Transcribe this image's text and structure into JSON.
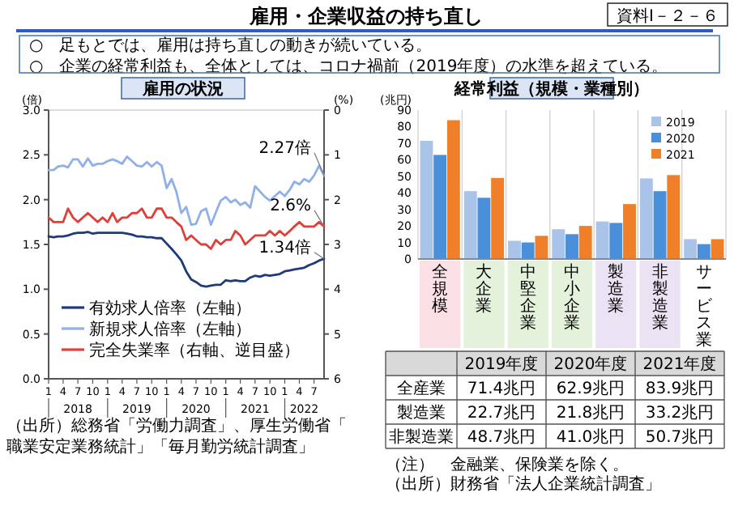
{
  "chart_data": [
    {
      "type": "other",
      "title": "雇用・企業収益の持ち直し",
      "annotations": [
        "資料Ⅰ－２－６",
        "○　足もとでは、雇用は持ち直しの動きが続いている。",
        "○　企業の経常利益も、全体としては、コロナ禍前（2019年度）の水準を超えている。"
      ]
    },
    {
      "type": "line",
      "title": "雇用の状況",
      "ylabel": "(倍)",
      "y2label": "(%)",
      "x": [
        "2018-01",
        "2018-02",
        "2018-03",
        "2018-04",
        "2018-05",
        "2018-06",
        "2018-07",
        "2018-08",
        "2018-09",
        "2018-10",
        "2018-11",
        "2018-12",
        "2019-01",
        "2019-02",
        "2019-03",
        "2019-04",
        "2019-05",
        "2019-06",
        "2019-07",
        "2019-08",
        "2019-09",
        "2019-10",
        "2019-11",
        "2019-12",
        "2020-01",
        "2020-02",
        "2020-03",
        "2020-04",
        "2020-05",
        "2020-06",
        "2020-07",
        "2020-08",
        "2020-09",
        "2020-10",
        "2020-11",
        "2020-12",
        "2021-01",
        "2021-02",
        "2021-03",
        "2021-04",
        "2021-05",
        "2021-06",
        "2021-07",
        "2021-08",
        "2021-09",
        "2021-10",
        "2021-11",
        "2021-12",
        "2022-01",
        "2022-02",
        "2022-03",
        "2022-04",
        "2022-05",
        "2022-06",
        "2022-07",
        "2022-08",
        "2022-09"
      ],
      "xlim": [
        "2018-01",
        "2022-09"
      ],
      "xticks": [
        {
          "value": "2018-01",
          "label": "1"
        },
        {
          "value": "2018-04",
          "label": "4"
        },
        {
          "value": "2018-07",
          "label": "7"
        },
        {
          "value": "2018-10",
          "label": "10"
        },
        {
          "value": "2019-01",
          "label": "1"
        },
        {
          "value": "2019-04",
          "label": "4"
        },
        {
          "value": "2019-07",
          "label": "7"
        },
        {
          "value": "2019-10",
          "label": "10"
        },
        {
          "value": "2020-01",
          "label": "1"
        },
        {
          "value": "2020-04",
          "label": "4"
        },
        {
          "value": "2020-07",
          "label": "7"
        },
        {
          "value": "2020-10",
          "label": "10"
        },
        {
          "value": "2021-01",
          "label": "1"
        },
        {
          "value": "2021-04",
          "label": "4"
        },
        {
          "value": "2021-07",
          "label": "7"
        },
        {
          "value": "2021-10",
          "label": "10"
        },
        {
          "value": "2022-01",
          "label": "1"
        },
        {
          "value": "2022-04",
          "label": "4"
        },
        {
          "value": "2022-07",
          "label": "7"
        }
      ],
      "ylim": [
        0,
        3
      ],
      "yticks": [
        {
          "value": 0,
          "label": "0.0"
        },
        {
          "value": 0.5,
          "label": "0.5"
        },
        {
          "value": 1,
          "label": "1.0"
        },
        {
          "value": 1.5,
          "label": "1.5"
        },
        {
          "value": 2,
          "label": "2.0"
        },
        {
          "value": 2.5,
          "label": "2.5"
        },
        {
          "value": 3,
          "label": "3.0"
        }
      ],
      "x2lim": [
        "2018-01",
        "2022-09"
      ],
      "x2ticks": [
        {
          "value": "2018-07",
          "label": "2018"
        },
        {
          "value": "2019-07",
          "label": "2019"
        },
        {
          "value": "2020-07",
          "label": "2020"
        },
        {
          "value": "2021-07",
          "label": "2021"
        },
        {
          "value": "2022-05",
          "label": "2022"
        }
      ],
      "y2lim": [
        6,
        0
      ],
      "y2ticks": [
        0,
        1,
        2,
        3,
        4,
        5,
        6
      ],
      "legend": "bottom left",
      "series": [
        {
          "name": "有効求人倍率（左軸）",
          "color": "#1f3a7a",
          "values": [
            1.59,
            1.58,
            1.59,
            1.59,
            1.6,
            1.62,
            1.63,
            1.63,
            1.64,
            1.62,
            1.63,
            1.63,
            1.63,
            1.63,
            1.63,
            1.63,
            1.62,
            1.61,
            1.59,
            1.59,
            1.58,
            1.58,
            1.57,
            1.57,
            1.51,
            1.45,
            1.39,
            1.32,
            1.2,
            1.11,
            1.08,
            1.04,
            1.03,
            1.04,
            1.05,
            1.05,
            1.1,
            1.09,
            1.1,
            1.09,
            1.09,
            1.13,
            1.15,
            1.14,
            1.16,
            1.15,
            1.16,
            1.17,
            1.2,
            1.21,
            1.22,
            1.23,
            1.24,
            1.27,
            1.29,
            1.32,
            1.34
          ]
        },
        {
          "name": "新規求人倍率（左軸）",
          "color": "#8fb0e8",
          "values": [
            2.33,
            2.33,
            2.37,
            2.38,
            2.36,
            2.45,
            2.45,
            2.37,
            2.46,
            2.38,
            2.4,
            2.4,
            2.43,
            2.45,
            2.43,
            2.4,
            2.48,
            2.43,
            2.38,
            2.37,
            2.42,
            2.37,
            2.42,
            2.38,
            2.13,
            2.23,
            2.09,
            1.85,
            1.92,
            1.72,
            1.73,
            1.87,
            1.9,
            1.72,
            1.86,
            1.99,
            2.03,
            1.97,
            2.0,
            1.94,
            1.97,
            1.91,
            2.15,
            2.09,
            2.03,
            1.99,
            2.04,
            2.09,
            2.04,
            2.11,
            2.2,
            2.17,
            2.23,
            2.2,
            2.27,
            2.38,
            2.27
          ]
        },
        {
          "name": "完全失業率（右軸、逆目盛）",
          "color": "#e0403a",
          "axis": "y2",
          "values": [
            2.4,
            2.5,
            2.5,
            2.5,
            2.2,
            2.4,
            2.5,
            2.4,
            2.3,
            2.4,
            2.5,
            2.4,
            2.5,
            2.3,
            2.5,
            2.4,
            2.4,
            2.3,
            2.3,
            2.2,
            2.4,
            2.4,
            2.2,
            2.2,
            2.4,
            2.4,
            2.5,
            2.6,
            2.9,
            2.8,
            2.9,
            3.0,
            3.0,
            3.1,
            2.9,
            3.0,
            2.9,
            2.9,
            2.7,
            2.8,
            3.0,
            2.9,
            2.8,
            2.8,
            2.8,
            2.7,
            2.8,
            2.7,
            2.8,
            2.7,
            2.6,
            2.5,
            2.6,
            2.6,
            2.6,
            2.5,
            2.6
          ]
        }
      ],
      "annotations": [
        {
          "text": "2.27倍",
          "x": "2022-09",
          "y": 2.27
        },
        {
          "text": "2.6%",
          "x": "2022-09",
          "y": 1.7
        },
        {
          "text": "1.34倍",
          "x": "2022-09",
          "y": 1.34
        },
        "（出所）総務省「労働力調査」、厚生労働省「職業安定業務統計」「毎月勤労統計調査」"
      ]
    },
    {
      "type": "bar",
      "title": "経常利益（規模・業種別）",
      "ylabel": "(兆円)",
      "categories": [
        "全規模",
        "大企業",
        "中堅企業",
        "中小企業",
        "製造業",
        "非製造業",
        "サービス業"
      ],
      "ylim": [
        0,
        90
      ],
      "yticks": [
        0,
        10,
        20,
        30,
        40,
        50,
        60,
        70,
        80,
        90
      ],
      "grid": "x",
      "legend": "top right",
      "series": [
        {
          "name": "2019",
          "color": "#a9c4e8",
          "values": [
            71.4,
            41,
            11,
            18,
            22.7,
            48.7,
            12
          ]
        },
        {
          "name": "2020",
          "color": "#4a8fd9",
          "values": [
            62.9,
            37,
            10,
            15,
            21.8,
            41.0,
            9
          ]
        },
        {
          "name": "2021",
          "color": "#f07f2a",
          "values": [
            83.9,
            49,
            14,
            20,
            33.2,
            50.7,
            12
          ]
        }
      ]
    },
    {
      "type": "other",
      "categories": [
        "2019年度",
        "2020年度",
        "2021年度"
      ],
      "y_categories": [
        "全産業",
        "製造業",
        "非製造業"
      ],
      "cell_labels": [
        [
          "71.4兆円",
          "62.9兆円",
          "83.9兆円"
        ],
        [
          "22.7兆円",
          "21.8兆円",
          "33.2兆円"
        ],
        [
          "48.7兆円",
          "41.0兆円",
          "50.7兆円"
        ]
      ],
      "annotations": [
        "（注）　金融業、保険業を除く。",
        "（出所）財務省「法人企業統計調査」"
      ]
    }
  ]
}
